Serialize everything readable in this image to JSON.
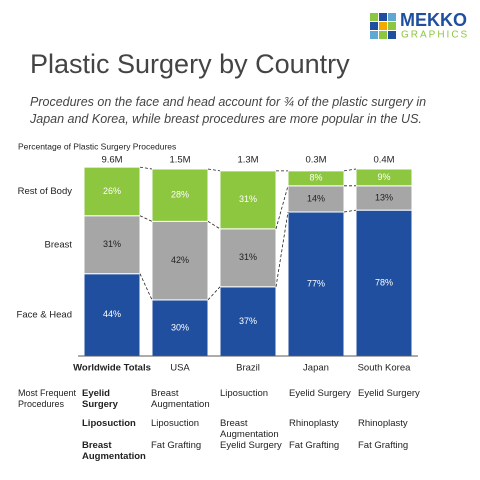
{
  "logo": {
    "name": "MEKKO",
    "sub": "GRAPHICS"
  },
  "chart_data": {
    "type": "stacked_bar",
    "title": "Plastic Surgery by Country",
    "subtitle": "Procedures on the face and head account for ¾ of the plastic surgery in Japan and Korea, while breast procedures are more popular in the US.",
    "y_label": "Percentage of Plastic Surgery Procedures",
    "categories": [
      "Worldwide Totals",
      "USA",
      "Brazil",
      "Japan",
      "South Korea"
    ],
    "totals": {
      "values": [
        9600000,
        1500000,
        1300000,
        300000,
        400000
      ],
      "labels": [
        "9.6M",
        "1.5M",
        "1.3M",
        "0.3M",
        "0.4M"
      ]
    },
    "ylim": [
      0,
      100
    ],
    "series": [
      {
        "name": "Face & Head",
        "color": "#1f4f9e",
        "values": [
          44,
          30,
          37,
          77,
          78
        ],
        "value_labels": [
          "44%",
          "30%",
          "37%",
          "77%",
          "78%"
        ]
      },
      {
        "name": "Breast",
        "color": "#a6a6a6",
        "values": [
          31,
          42,
          31,
          14,
          13
        ],
        "value_labels": [
          "31%",
          "42%",
          "31%",
          "14%",
          "13%"
        ]
      },
      {
        "name": "Rest of Body",
        "color": "#8dc63f",
        "values": [
          26,
          28,
          31,
          8,
          9
        ],
        "value_labels": [
          "26%",
          "28%",
          "31%",
          "8%",
          "9%"
        ]
      }
    ]
  },
  "table": {
    "label": "Most Frequent Procedures",
    "rows": [
      [
        "Eyelid Surgery",
        "Breast Augmentation",
        "Liposuction",
        "Eyelid Surgery",
        "Eyelid Surgery"
      ],
      [
        "Liposuction",
        "Liposuction",
        "Breast Augmentation",
        "Rhinoplasty",
        "Rhinoplasty"
      ],
      [
        "Breast Augmentation",
        "Fat Grafting",
        "Eyelid Surgery",
        "Fat Grafting",
        "Fat Grafting"
      ]
    ]
  }
}
